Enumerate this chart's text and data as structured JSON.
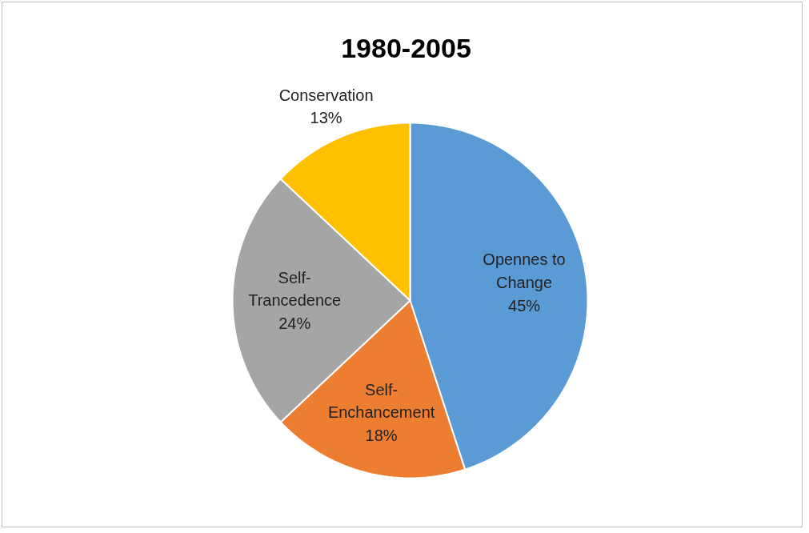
{
  "chart_data": {
    "type": "pie",
    "title": "1980-2005",
    "categories": [
      "Opennes to Change",
      "Self-Enchancement",
      "Self-Trancedence",
      "Conservation"
    ],
    "values": [
      45,
      18,
      24,
      13
    ],
    "colors": [
      "#5b9bd5",
      "#ed7d31",
      "#a5a5a5",
      "#ffc000"
    ],
    "value_labels": [
      "45%",
      "18%",
      "24%",
      "13%"
    ],
    "legend": false
  }
}
